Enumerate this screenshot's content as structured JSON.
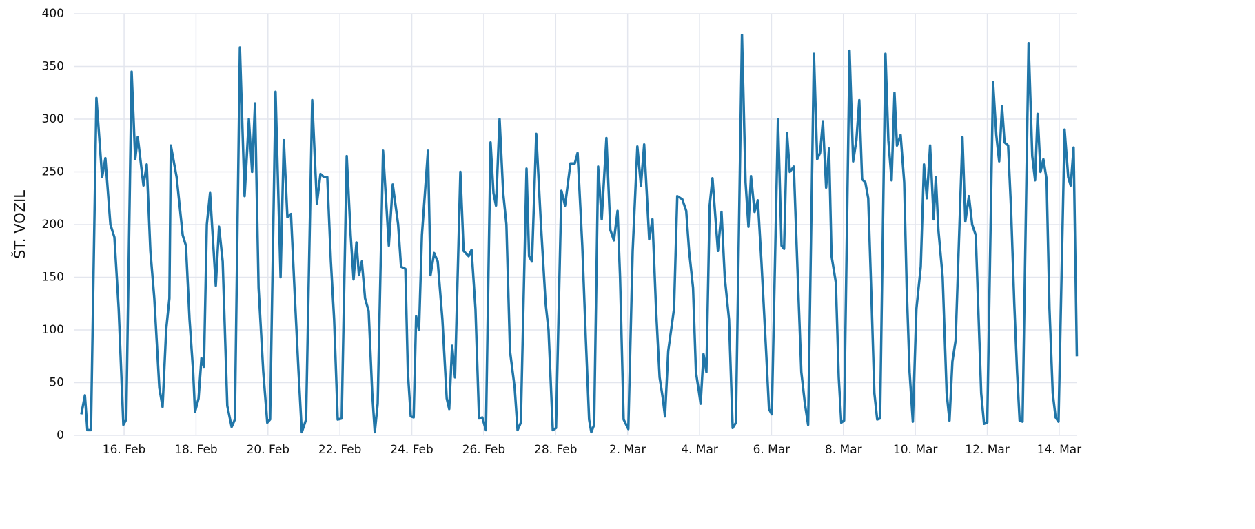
{
  "chart_data": {
    "type": "line",
    "y_label": "ŠT. VOZIL",
    "color": "#2176a8",
    "grid": true,
    "xlim": [
      14.6,
      42.5
    ],
    "xticks": [
      {
        "value": 16,
        "label": "16. Feb"
      },
      {
        "value": 18,
        "label": "18. Feb"
      },
      {
        "value": 20,
        "label": "20. Feb"
      },
      {
        "value": 22,
        "label": "22. Feb"
      },
      {
        "value": 24,
        "label": "24. Feb"
      },
      {
        "value": 26,
        "label": "26. Feb"
      },
      {
        "value": 28,
        "label": "28. Feb"
      },
      {
        "value": 30,
        "label": "2. Mar"
      },
      {
        "value": 32,
        "label": "4. Mar"
      },
      {
        "value": 34,
        "label": "6. Mar"
      },
      {
        "value": 36,
        "label": "8. Mar"
      },
      {
        "value": 38,
        "label": "10. Mar"
      },
      {
        "value": 40,
        "label": "12. Mar"
      },
      {
        "value": 42,
        "label": "14. Mar"
      }
    ],
    "ylim": [
      0,
      400
    ],
    "yticks": [
      0,
      50,
      100,
      150,
      200,
      250,
      300,
      350,
      400
    ],
    "x": [
      14.81,
      14.91,
      14.98,
      15.08,
      15.23,
      15.39,
      15.48,
      15.62,
      15.73,
      15.85,
      15.98,
      16.06,
      16.21,
      16.31,
      16.38,
      16.54,
      16.63,
      16.73,
      16.84,
      16.98,
      17.07,
      17.17,
      17.26,
      17.3,
      17.46,
      17.63,
      17.72,
      17.82,
      17.92,
      17.97,
      18.07,
      18.15,
      18.22,
      18.3,
      18.39,
      18.55,
      18.64,
      18.74,
      18.87,
      18.99,
      19.08,
      19.22,
      19.35,
      19.47,
      19.56,
      19.64,
      19.74,
      19.87,
      19.98,
      20.06,
      20.21,
      20.35,
      20.44,
      20.54,
      20.64,
      20.75,
      20.85,
      20.94,
      21.06,
      21.23,
      21.36,
      21.46,
      21.56,
      21.65,
      21.75,
      21.84,
      21.94,
      22.05,
      22.19,
      22.3,
      22.38,
      22.46,
      22.53,
      22.61,
      22.7,
      22.8,
      22.9,
      22.97,
      23.05,
      23.2,
      23.36,
      23.47,
      23.62,
      23.7,
      23.82,
      23.89,
      23.97,
      24.05,
      24.12,
      24.2,
      24.28,
      24.45,
      24.52,
      24.62,
      24.72,
      24.85,
      24.97,
      25.04,
      25.12,
      25.2,
      25.35,
      25.44,
      25.58,
      25.66,
      25.77,
      25.87,
      25.96,
      26.06,
      26.19,
      26.27,
      26.34,
      26.44,
      26.54,
      26.63,
      26.73,
      26.86,
      26.94,
      27.03,
      27.19,
      27.26,
      27.34,
      27.46,
      27.59,
      27.72,
      27.8,
      27.92,
      28.01,
      28.16,
      28.26,
      28.41,
      28.53,
      28.61,
      28.74,
      28.84,
      28.93,
      28.99,
      29.07,
      29.18,
      29.28,
      29.41,
      29.52,
      29.62,
      29.72,
      29.79,
      29.89,
      30.02,
      30.14,
      30.27,
      30.37,
      30.46,
      30.6,
      30.69,
      30.79,
      30.89,
      30.98,
      31.04,
      31.13,
      31.29,
      31.38,
      31.52,
      31.63,
      31.71,
      31.82,
      31.9,
      31.98,
      32.03,
      32.11,
      32.19,
      32.28,
      32.36,
      32.51,
      32.61,
      32.7,
      32.82,
      32.92,
      33.01,
      33.18,
      33.28,
      33.36,
      33.43,
      33.53,
      33.62,
      33.72,
      33.85,
      33.93,
      34.01,
      34.18,
      34.28,
      34.35,
      34.43,
      34.51,
      34.62,
      34.72,
      34.83,
      34.93,
      35.02,
      35.18,
      35.27,
      35.35,
      35.43,
      35.52,
      35.6,
      35.67,
      35.79,
      35.87,
      35.94,
      36.02,
      36.17,
      36.27,
      36.36,
      36.44,
      36.52,
      36.61,
      36.69,
      36.79,
      36.86,
      36.94,
      37.02,
      37.17,
      37.25,
      37.34,
      37.42,
      37.49,
      37.59,
      37.69,
      37.76,
      37.84,
      37.93,
      38.03,
      38.15,
      38.24,
      38.32,
      38.41,
      38.51,
      38.57,
      38.64,
      38.76,
      38.87,
      38.95,
      39.03,
      39.12,
      39.31,
      39.39,
      39.49,
      39.58,
      39.68,
      39.75,
      39.83,
      39.91,
      40.0,
      40.16,
      40.25,
      40.33,
      40.41,
      40.48,
      40.58,
      40.66,
      40.75,
      40.83,
      40.9,
      40.98,
      41.15,
      41.25,
      41.33,
      41.4,
      41.48,
      41.56,
      41.65,
      41.73,
      41.82,
      41.9,
      41.98,
      42.15,
      42.25,
      42.32,
      42.4,
      42.49
    ],
    "values": [
      20,
      38,
      5,
      5,
      320,
      245,
      263,
      200,
      188,
      120,
      10,
      15,
      345,
      262,
      283,
      237,
      257,
      175,
      130,
      45,
      27,
      100,
      130,
      275,
      245,
      190,
      180,
      110,
      60,
      22,
      35,
      73,
      65,
      200,
      230,
      142,
      198,
      165,
      28,
      8,
      15,
      368,
      227,
      300,
      250,
      315,
      140,
      60,
      12,
      15,
      326,
      150,
      280,
      207,
      210,
      130,
      60,
      3,
      15,
      318,
      220,
      248,
      245,
      245,
      165,
      110,
      15,
      16,
      265,
      190,
      148,
      183,
      152,
      165,
      130,
      118,
      40,
      3,
      30,
      270,
      180,
      238,
      200,
      160,
      158,
      60,
      18,
      17,
      113,
      100,
      190,
      270,
      152,
      173,
      165,
      110,
      35,
      25,
      85,
      55,
      250,
      175,
      170,
      176,
      120,
      16,
      17,
      5,
      278,
      230,
      218,
      300,
      230,
      200,
      80,
      45,
      5,
      12,
      253,
      170,
      165,
      286,
      200,
      125,
      100,
      5,
      7,
      232,
      218,
      258,
      258,
      268,
      180,
      90,
      15,
      3,
      10,
      255,
      205,
      282,
      195,
      185,
      213,
      150,
      15,
      6,
      175,
      274,
      237,
      276,
      186,
      205,
      120,
      55,
      35,
      18,
      80,
      120,
      227,
      224,
      213,
      175,
      140,
      60,
      42,
      30,
      77,
      60,
      218,
      244,
      175,
      212,
      150,
      110,
      7,
      12,
      380,
      240,
      198,
      246,
      212,
      223,
      165,
      80,
      25,
      20,
      300,
      180,
      177,
      287,
      250,
      255,
      160,
      60,
      30,
      10,
      362,
      262,
      268,
      298,
      235,
      272,
      170,
      145,
      55,
      12,
      14,
      365,
      260,
      280,
      318,
      243,
      240,
      225,
      120,
      40,
      15,
      16,
      362,
      280,
      242,
      325,
      275,
      285,
      240,
      140,
      60,
      13,
      120,
      160,
      257,
      225,
      275,
      205,
      245,
      195,
      150,
      40,
      14,
      70,
      90,
      283,
      203,
      227,
      200,
      190,
      120,
      40,
      11,
      12,
      335,
      285,
      260,
      312,
      278,
      275,
      215,
      125,
      60,
      14,
      13,
      372,
      265,
      242,
      305,
      250,
      262,
      243,
      120,
      40,
      17,
      13,
      290,
      245,
      237,
      273,
      75
    ]
  }
}
